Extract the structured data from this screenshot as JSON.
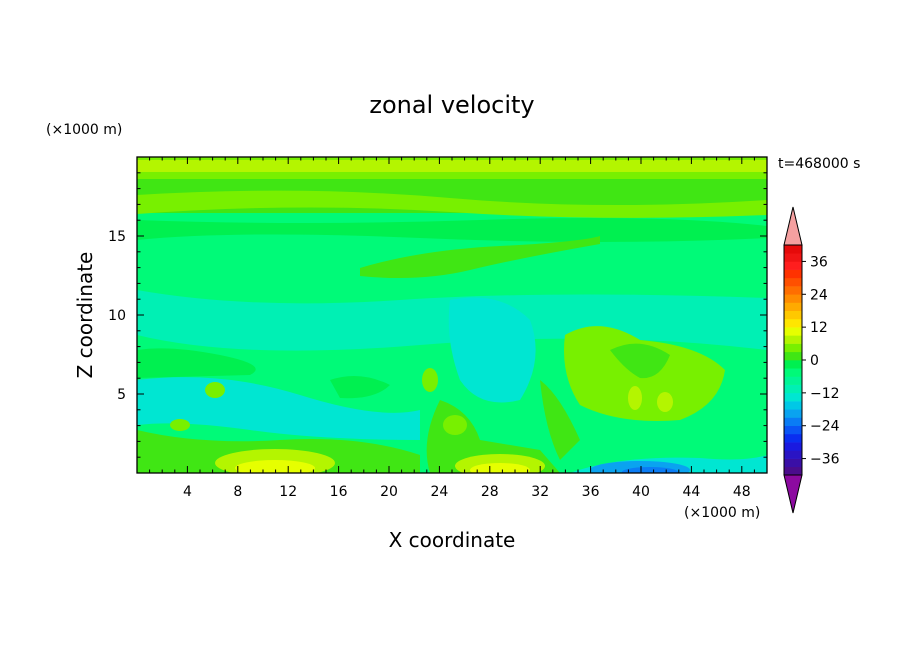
{
  "chart_data": {
    "type": "heatmap",
    "title": "zonal velocity",
    "xlabel": "X coordinate",
    "ylabel": "Z coordinate",
    "x_unit": "(×1000 m)",
    "y_unit": "(×1000 m)",
    "time_label": "t=468000 s",
    "xlim": [
      0,
      50
    ],
    "ylim": [
      0,
      20
    ],
    "x_ticks": [
      "4",
      "8",
      "12",
      "16",
      "20",
      "24",
      "28",
      "32",
      "36",
      "40",
      "44",
      "48"
    ],
    "x_tick_values": [
      4,
      8,
      12,
      16,
      20,
      24,
      28,
      32,
      36,
      40,
      44,
      48
    ],
    "y_ticks": [
      "5",
      "10",
      "15"
    ],
    "y_tick_values": [
      5,
      10,
      15
    ],
    "colorbar": {
      "levels": [
        -42,
        -39,
        -36,
        -33,
        -30,
        -27,
        -24,
        -21,
        -18,
        -15,
        -12,
        -9,
        -6,
        -3,
        0,
        3,
        6,
        9,
        12,
        15,
        18,
        21,
        24,
        27,
        30,
        33,
        36,
        39,
        42
      ],
      "colors": [
        "#4b0c8c",
        "#3a0fa6",
        "#2a14c4",
        "#1a1ae0",
        "#0a2ef0",
        "#0a55f5",
        "#0a7cf5",
        "#0aa3f0",
        "#00c8e6",
        "#00e6d2",
        "#00f0b4",
        "#00f596",
        "#00fa78",
        "#00f050",
        "#40e614",
        "#78f000",
        "#b4f500",
        "#e6ff00",
        "#ffe600",
        "#ffc800",
        "#ffaa00",
        "#ff8c00",
        "#ff6e00",
        "#ff5000",
        "#ff3200",
        "#ff1e1e",
        "#f01414",
        "#e60a0a"
      ],
      "tick_labels": [
        "36",
        "24",
        "12",
        "0",
        "-12",
        "-24",
        "-36"
      ],
      "tick_values": [
        36,
        24,
        12,
        0,
        -12,
        -24,
        -36
      ],
      "upper_extend_color": "#f5a0a0",
      "lower_extend_color": "#8c0aa0"
    },
    "field_colors": {
      "c_m6": "#00f0b4",
      "c_m3": "#00fa78",
      "c_0": "#00f050",
      "c_3": "#40e614",
      "c_6": "#78f000",
      "c_9": "#b4f500",
      "c_12": "#e6ff00",
      "c_m12": "#00e6d2",
      "c_m18": "#0aa3f0",
      "c_m24": "#0a7cf5"
    }
  }
}
